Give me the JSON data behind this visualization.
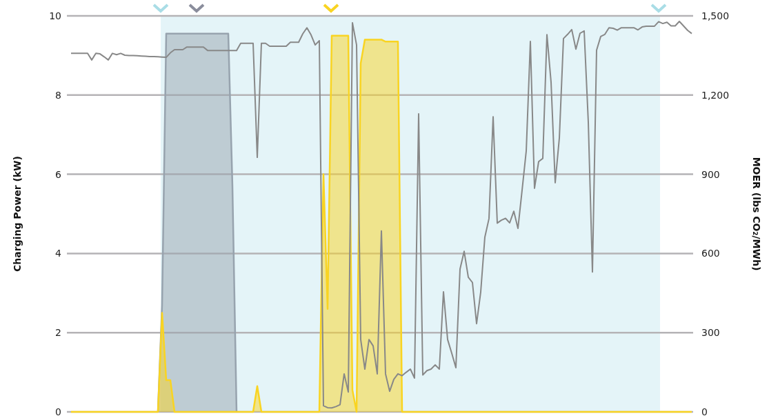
{
  "chart_data": [
    {
      "type": "area",
      "ylabel": "Charging Power (kW)",
      "categories": [
        null,
        null,
        null,
        null,
        null,
        null,
        null,
        null,
        null,
        null,
        null,
        null,
        null,
        null,
        null,
        null,
        null,
        null,
        null,
        null,
        null,
        null,
        null,
        null,
        null,
        null,
        null,
        null,
        null,
        null,
        null,
        null,
        null,
        null,
        null,
        null,
        null,
        null,
        null,
        null,
        null,
        null,
        null,
        null,
        null,
        null,
        null,
        null,
        null,
        null,
        null,
        null,
        null,
        null,
        null,
        null,
        null,
        null,
        null,
        null,
        null,
        null,
        null,
        null,
        null,
        null,
        null,
        null,
        null,
        null,
        null,
        null,
        null,
        null,
        null,
        null,
        null,
        null,
        null,
        null,
        null,
        null,
        null,
        null,
        null,
        null,
        null,
        null,
        null,
        null,
        null,
        null,
        null,
        null,
        null,
        null,
        null,
        null,
        null,
        null,
        null,
        null,
        null,
        null,
        null,
        null,
        null,
        null,
        null,
        null,
        null,
        null,
        null,
        null,
        null,
        null,
        null,
        null,
        null,
        null,
        null,
        null,
        null,
        null,
        null,
        null,
        null,
        null,
        null,
        null,
        null,
        null,
        null,
        null,
        null,
        null,
        null,
        null,
        null,
        null,
        null,
        null,
        null,
        null,
        null,
        null,
        null,
        null,
        null,
        null,
        null
      ],
      "ylim": [
        0,
        10
      ],
      "yticks": [
        0,
        2,
        4,
        6,
        8,
        10
      ],
      "grid": "y",
      "tick_labels": "y",
      "series": [
        {
          "color": "#97a3ae",
          "values": [
            null,
            null,
            null,
            null,
            null,
            null,
            null,
            null,
            null,
            null,
            null,
            null,
            null,
            null,
            null,
            null,
            null,
            null,
            null,
            null,
            null,
            0,
            2.7,
            9.55,
            9.55,
            9.55,
            9.55,
            9.55,
            9.55,
            9.55,
            9.55,
            9.55,
            9.55,
            9.55,
            9.55,
            9.55,
            9.55,
            9.55,
            9.55,
            5.7,
            0,
            null,
            null,
            null,
            null,
            null,
            null,
            null,
            null,
            null,
            null,
            null,
            null,
            null,
            null,
            null,
            null,
            null,
            null,
            null,
            null,
            null,
            null,
            null,
            null,
            null,
            null,
            null,
            null,
            null,
            null,
            null,
            null,
            null,
            null,
            null,
            null,
            null,
            null,
            null,
            null,
            null,
            null,
            null,
            null,
            null,
            null,
            null,
            null,
            null,
            null,
            null,
            null,
            null,
            null,
            null,
            null,
            null,
            null,
            null,
            null,
            null,
            null,
            null,
            null,
            null,
            null,
            null,
            null,
            null,
            null,
            null,
            null,
            null,
            null,
            null,
            null,
            null,
            null,
            null,
            null,
            null,
            null,
            null,
            null,
            null,
            null,
            null,
            null,
            null,
            null,
            null,
            null,
            null,
            null,
            null,
            null,
            null,
            null,
            null,
            null,
            null,
            null,
            null,
            null,
            null,
            null,
            null,
            null,
            null,
            null
          ]
        },
        {
          "color": "#f9d422",
          "values": [
            0,
            0,
            0,
            0,
            0,
            0,
            0,
            0,
            0,
            0,
            0,
            0,
            0,
            0,
            0,
            0,
            0,
            0,
            0,
            0,
            0,
            0,
            2.5,
            0.8,
            0.8,
            0,
            0,
            0,
            0,
            0,
            0,
            0,
            0,
            0,
            0,
            0,
            0,
            0,
            0,
            0,
            0,
            0,
            0,
            0,
            0,
            0.65,
            0,
            0,
            0,
            0,
            0,
            0,
            0,
            0,
            0,
            0,
            0,
            0,
            0,
            0,
            0,
            6.0,
            2.6,
            9.5,
            9.5,
            9.5,
            9.5,
            9.5,
            0.55,
            0,
            8.8,
            9.4,
            9.4,
            9.4,
            9.4,
            9.4,
            9.35,
            9.35,
            9.35,
            9.35,
            0,
            0,
            0,
            0,
            0,
            0,
            0,
            0,
            0,
            0,
            0,
            0,
            0,
            0,
            0,
            0,
            0,
            0,
            0,
            0,
            0,
            0,
            0,
            0,
            0,
            0,
            0,
            0,
            0,
            0,
            0,
            0,
            0,
            0,
            0,
            0,
            0,
            0,
            0,
            0,
            0,
            0,
            0,
            0,
            0,
            0,
            0,
            0,
            0,
            0,
            0,
            0,
            0,
            0,
            0,
            0,
            0,
            0,
            0,
            0,
            0,
            0,
            0,
            0,
            0,
            0,
            0,
            0,
            0,
            0,
            0
          ]
        }
      ]
    },
    {
      "type": "line",
      "ylabel": "MOER (lbs CO₂/MWh)",
      "categories": [
        null,
        null,
        null,
        null,
        null,
        null,
        null,
        null,
        null,
        null,
        null,
        null,
        null,
        null,
        null,
        null,
        null,
        null,
        null,
        null,
        null,
        null,
        null,
        null,
        null,
        null,
        null,
        null,
        null,
        null,
        null,
        null,
        null,
        null,
        null,
        null,
        null,
        null,
        null,
        null,
        null,
        null,
        null,
        null,
        null,
        null,
        null,
        null,
        null,
        null,
        null,
        null,
        null,
        null,
        null,
        null,
        null,
        null,
        null,
        null,
        null,
        null,
        null,
        null,
        null,
        null,
        null,
        null,
        null,
        null,
        null,
        null,
        null,
        null,
        null,
        null,
        null,
        null,
        null,
        null,
        null,
        null,
        null,
        null,
        null,
        null,
        null,
        null,
        null,
        null,
        null,
        null,
        null,
        null,
        null,
        null,
        null,
        null,
        null,
        null,
        null,
        null,
        null,
        null,
        null,
        null,
        null,
        null,
        null,
        null,
        null,
        null,
        null,
        null,
        null,
        null,
        null,
        null,
        null,
        null,
        null,
        null,
        null,
        null,
        null,
        null,
        null,
        null,
        null,
        null,
        null,
        null,
        null,
        null,
        null,
        null,
        null,
        null,
        null,
        null,
        null,
        null,
        null,
        null,
        null,
        null,
        null,
        null,
        null,
        null,
        null
      ],
      "ylim": [
        0,
        1500
      ],
      "yticks": [
        0,
        {
          "value": 300,
          "label": "300"
        },
        {
          "value": 600,
          "label": "600"
        },
        {
          "value": 900,
          "label": "900"
        },
        {
          "value": 1200,
          "label": "1,200"
        },
        {
          "value": 1500,
          "label": "1,500"
        }
      ],
      "tick_labels": "y",
      "series": [
        {
          "color": "#888888",
          "values": [
            1358,
            1358,
            1358,
            1358,
            1358,
            1333,
            1358,
            1356,
            1345,
            1333,
            1358,
            1353,
            1358,
            1351,
            1350,
            1350,
            1349,
            1348,
            1347,
            1346,
            1346,
            1345,
            1344,
            1343,
            1360,
            1372,
            1372,
            1372,
            1382,
            1382,
            1382,
            1382,
            1382,
            1369,
            1369,
            1369,
            1369,
            1369,
            1369,
            1369,
            1369,
            1396,
            1396,
            1396,
            1396,
            964,
            1396,
            1396,
            1385,
            1385,
            1385,
            1385,
            1385,
            1400,
            1400,
            1400,
            1432,
            1455,
            1428,
            1390,
            1406,
            23,
            16,
            15,
            20,
            27,
            144,
            75,
            1474,
            1390,
            274,
            162,
            274,
            250,
            144,
            685,
            144,
            78,
            123,
            144,
            137,
            150,
            162,
            128,
            1129,
            140,
            156,
            162,
            178,
            162,
            455,
            274,
            222,
            167,
            541,
            608,
            510,
            490,
            334,
            454,
            662,
            732,
            1118,
            715,
            726,
            733,
            716,
            760,
            695,
            840,
            988,
            1403,
            847,
            948,
            960,
            1429,
            1249,
            868,
            1037,
            1414,
            1430,
            1448,
            1374,
            1434,
            1443,
            1097,
            530,
            1370,
            1422,
            1430,
            1455,
            1453,
            1446,
            1455,
            1455,
            1455,
            1455,
            1447,
            1458,
            1461,
            1461,
            1461,
            1478,
            1471,
            1476,
            1462,
            1462,
            1479,
            1462,
            1445,
            1433
          ]
        }
      ]
    }
  ]
}
